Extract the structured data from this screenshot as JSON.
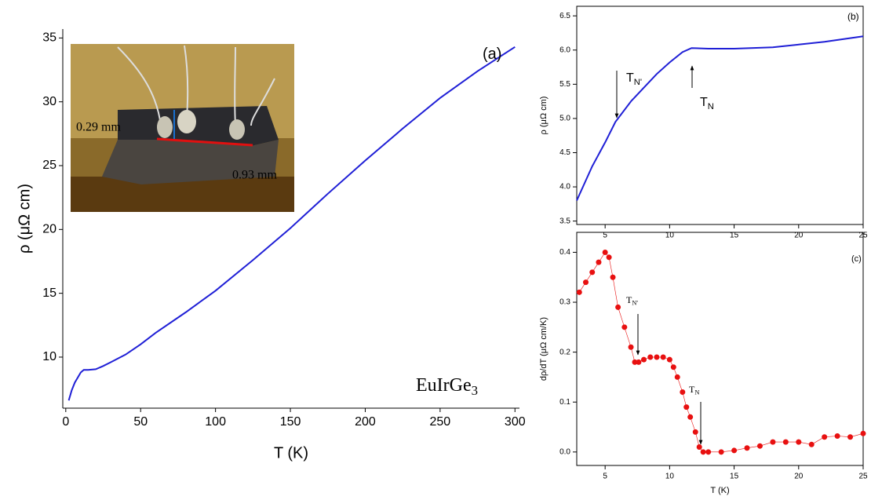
{
  "chart_data": [
    {
      "type": "line",
      "panel": "a",
      "xlabel": "T (K)",
      "ylabel": "ρ (μΩ cm)",
      "xlim": [
        -2,
        303
      ],
      "ylim": [
        6,
        35.7
      ],
      "xticks": [
        0,
        50,
        100,
        150,
        200,
        250,
        300
      ],
      "yticks": [
        10,
        15,
        20,
        25,
        30,
        35
      ],
      "x": [
        2,
        4,
        6,
        8,
        10,
        12,
        15,
        20,
        25,
        30,
        40,
        50,
        60,
        80,
        100,
        125,
        150,
        175,
        200,
        225,
        250,
        275,
        300
      ],
      "series": [
        {
          "color": "#1f1fd6",
          "values": [
            6.6,
            7.4,
            8.0,
            8.4,
            8.8,
            9.0,
            9.0,
            9.05,
            9.3,
            9.6,
            10.2,
            11.0,
            11.9,
            13.5,
            15.2,
            17.6,
            20.1,
            22.8,
            25.4,
            27.9,
            30.3,
            32.4,
            34.3
          ]
        }
      ],
      "annotations": [
        {
          "text": "(a)"
        },
        {
          "text": "EuIrGe",
          "sub": "3"
        }
      ],
      "inset_labels": [
        "0.29 mm",
        "0.93 mm"
      ]
    },
    {
      "type": "line",
      "panel": "b",
      "ylabel": "ρ (μΩ cm)",
      "xlim": [
        2.8,
        25
      ],
      "ylim": [
        3.45,
        6.64
      ],
      "xticks": [
        5,
        10,
        15,
        20,
        25
      ],
      "yticks": [
        3.5,
        4.0,
        4.5,
        5.0,
        5.5,
        6.0,
        6.5
      ],
      "x": [
        2.8,
        4,
        5,
        5.8,
        7,
        8,
        9,
        10,
        11,
        11.7,
        13,
        15,
        18,
        20,
        22,
        25
      ],
      "series": [
        {
          "color": "#1f1fd6",
          "values": [
            3.8,
            4.3,
            4.65,
            4.95,
            5.25,
            5.45,
            5.65,
            5.82,
            5.97,
            6.03,
            6.02,
            6.02,
            6.04,
            6.08,
            6.12,
            6.2
          ]
        }
      ],
      "annotations": [
        {
          "text": "(b)"
        },
        {
          "text": "T",
          "sub": "N'"
        },
        {
          "text": "T",
          "sub": "N"
        }
      ]
    },
    {
      "type": "scatter",
      "panel": "c",
      "xlabel": "T (K)",
      "ylabel": "dρ/dT (μΩ cm/K)",
      "xlim": [
        2.8,
        25
      ],
      "ylim": [
        -0.027,
        0.44
      ],
      "xticks": [
        5,
        10,
        15,
        20,
        25
      ],
      "yticks": [
        0.0,
        0.1,
        0.2,
        0.3,
        0.4
      ],
      "x": [
        3,
        3.5,
        4,
        4.5,
        5,
        5.3,
        5.6,
        6,
        6.5,
        7,
        7.3,
        7.6,
        8,
        8.5,
        9,
        9.5,
        10,
        10.3,
        10.6,
        11,
        11.3,
        11.6,
        12,
        12.3,
        12.6,
        13,
        14,
        15,
        16,
        17,
        18,
        19,
        20,
        21,
        22,
        23,
        24,
        25
      ],
      "series": [
        {
          "color": "#e81010",
          "values": [
            0.32,
            0.34,
            0.36,
            0.38,
            0.4,
            0.39,
            0.35,
            0.29,
            0.25,
            0.21,
            0.18,
            0.18,
            0.185,
            0.19,
            0.19,
            0.19,
            0.185,
            0.17,
            0.15,
            0.12,
            0.09,
            0.07,
            0.04,
            0.01,
            0.0,
            0.0,
            0.0,
            0.003,
            0.008,
            0.012,
            0.02,
            0.02,
            0.02,
            0.015,
            0.03,
            0.032,
            0.03,
            0.037
          ]
        }
      ],
      "annotations": [
        {
          "text": "(c)"
        },
        {
          "text": "T",
          "sub": "N'"
        },
        {
          "text": "T",
          "sub": "N"
        }
      ]
    }
  ]
}
